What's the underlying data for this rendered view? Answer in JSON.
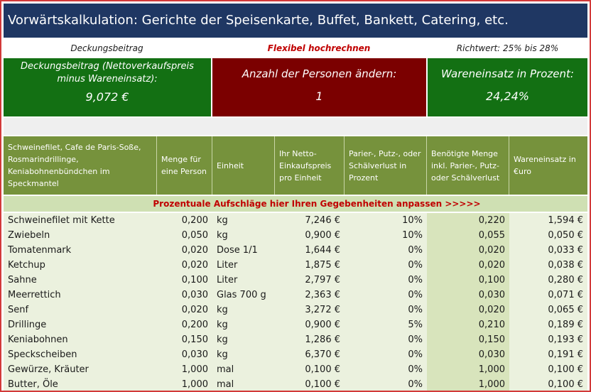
{
  "title": "Vorwärtskalkulation: Gerichte der Speisenkarte, Buffet, Bankett, Catering, etc.",
  "info": {
    "left": "Deckungsbeitrag",
    "middle": "Flexibel hochrechnen",
    "right": "Richtwert: 25% bis 28%"
  },
  "boxes": {
    "db_label": "Deckungsbeitrag (Nettoverkaufspreis minus Wareneinsatz):",
    "db_value": "9,072 €",
    "persons_label": "Anzahl der Personen ändern:",
    "persons_value": "1",
    "we_label": "Wareneinsatz in Prozent:",
    "we_value": "24,24%"
  },
  "header": {
    "col1": "Schweinefilet, Cafe de Paris-Soße, Rosmarindrillinge, Keniabohnenbündchen im Speckmantel",
    "col2": "Menge für eine Person",
    "col3": "Einheit",
    "col4": "Ihr Netto-Einkaufspreis pro Einheit",
    "col5": "Parier-, Putz-, oder Schälverlust in Prozent",
    "col6": "Benötigte Menge inkl. Parier-, Putz- oder Schälverlust",
    "col7": "Wareneinsatz in €uro"
  },
  "banner": "Prozentuale Aufschläge hier Ihren Gegebenheiten anpassen  >>>>>",
  "rows": [
    {
      "name": "Schweinefilet mit Kette",
      "menge": "0,200",
      "einheit": "kg",
      "preis": "7,246 €",
      "verlust": "10%",
      "benoetigt": "0,220",
      "einsatz": "1,594 €"
    },
    {
      "name": "Zwiebeln",
      "menge": "0,050",
      "einheit": "kg",
      "preis": "0,900 €",
      "verlust": "10%",
      "benoetigt": "0,055",
      "einsatz": "0,050 €"
    },
    {
      "name": "Tomatenmark",
      "menge": "0,020",
      "einheit": "Dose 1/1",
      "preis": "1,644 €",
      "verlust": "0%",
      "benoetigt": "0,020",
      "einsatz": "0,033 €"
    },
    {
      "name": "Ketchup",
      "menge": "0,020",
      "einheit": "Liter",
      "preis": "1,875 €",
      "verlust": "0%",
      "benoetigt": "0,020",
      "einsatz": "0,038 €"
    },
    {
      "name": "Sahne",
      "menge": "0,100",
      "einheit": "Liter",
      "preis": "2,797 €",
      "verlust": "0%",
      "benoetigt": "0,100",
      "einsatz": "0,280 €"
    },
    {
      "name": "Meerrettich",
      "menge": "0,030",
      "einheit": "Glas 700 g",
      "preis": "2,363 €",
      "verlust": "0%",
      "benoetigt": "0,030",
      "einsatz": "0,071 €"
    },
    {
      "name": "Senf",
      "menge": "0,020",
      "einheit": "kg",
      "preis": "3,272 €",
      "verlust": "0%",
      "benoetigt": "0,020",
      "einsatz": "0,065 €"
    },
    {
      "name": "Drillinge",
      "menge": "0,200",
      "einheit": "kg",
      "preis": "0,900 €",
      "verlust": "5%",
      "benoetigt": "0,210",
      "einsatz": "0,189 €"
    },
    {
      "name": "Keniabohnen",
      "menge": "0,150",
      "einheit": "kg",
      "preis": "1,286 €",
      "verlust": "0%",
      "benoetigt": "0,150",
      "einsatz": "0,193 €"
    },
    {
      "name": "Speckscheiben",
      "menge": "0,030",
      "einheit": "kg",
      "preis": "6,370 €",
      "verlust": "0%",
      "benoetigt": "0,030",
      "einsatz": "0,191 €"
    },
    {
      "name": "Gewürze, Kräuter",
      "menge": "1,000",
      "einheit": "mal",
      "preis": "0,100 €",
      "verlust": "0%",
      "benoetigt": "1,000",
      "einsatz": "0,100 €"
    },
    {
      "name": "Butter, Öle",
      "menge": "1,000",
      "einheit": "mal",
      "preis": "0,100 €",
      "verlust": "0%",
      "benoetigt": "1,000",
      "einsatz": "0,100 €"
    }
  ]
}
